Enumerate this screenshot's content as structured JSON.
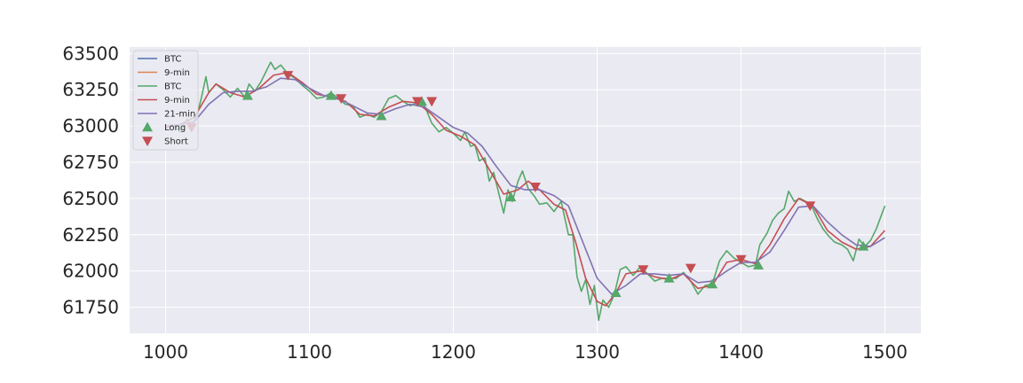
{
  "chart_data": {
    "type": "line",
    "title": "",
    "xlabel": "",
    "ylabel": "",
    "xlim": [
      975,
      1525
    ],
    "ylim": [
      61570,
      63545
    ],
    "xticks": [
      1000,
      1100,
      1200,
      1300,
      1400,
      1500
    ],
    "xtick_labels": [
      "1000",
      "1100",
      "1200",
      "1300",
      "1400",
      "1500"
    ],
    "yticks": [
      61750,
      62000,
      62250,
      62500,
      62750,
      63000,
      63250,
      63500
    ],
    "ytick_labels": [
      "61750",
      "62000",
      "62250",
      "62500",
      "62750",
      "63000",
      "63250",
      "63500"
    ],
    "grid": true,
    "legend_position": "top-left",
    "legend": [
      {
        "label": "BTC",
        "kind": "line",
        "color": "#4c72b0"
      },
      {
        "label": "9-min",
        "kind": "line",
        "color": "#dd8452"
      },
      {
        "label": "BTC",
        "kind": "line",
        "color": "#55a868"
      },
      {
        "label": "9-min",
        "kind": "line",
        "color": "#c44e52"
      },
      {
        "label": "21-min",
        "kind": "line",
        "color": "#8172b3"
      },
      {
        "label": "Long",
        "kind": "marker-up",
        "color": "#55a868"
      },
      {
        "label": "Short",
        "kind": "marker-down",
        "color": "#c44e52"
      }
    ],
    "series": [
      {
        "name": "BTC",
        "color": "#55a868",
        "points": [
          [
            1000,
            62980
          ],
          [
            1005,
            63010
          ],
          [
            1010,
            62960
          ],
          [
            1015,
            63050
          ],
          [
            1018,
            62990
          ],
          [
            1022,
            63080
          ],
          [
            1025,
            63200
          ],
          [
            1028,
            63340
          ],
          [
            1030,
            63230
          ],
          [
            1035,
            63290
          ],
          [
            1040,
            63250
          ],
          [
            1045,
            63200
          ],
          [
            1050,
            63260
          ],
          [
            1055,
            63200
          ],
          [
            1058,
            63290
          ],
          [
            1062,
            63240
          ],
          [
            1066,
            63300
          ],
          [
            1070,
            63380
          ],
          [
            1073,
            63440
          ],
          [
            1076,
            63390
          ],
          [
            1080,
            63420
          ],
          [
            1085,
            63360
          ],
          [
            1090,
            63330
          ],
          [
            1095,
            63280
          ],
          [
            1100,
            63240
          ],
          [
            1105,
            63190
          ],
          [
            1110,
            63200
          ],
          [
            1115,
            63230
          ],
          [
            1120,
            63190
          ],
          [
            1125,
            63150
          ],
          [
            1130,
            63140
          ],
          [
            1135,
            63060
          ],
          [
            1140,
            63080
          ],
          [
            1145,
            63060
          ],
          [
            1150,
            63100
          ],
          [
            1155,
            63190
          ],
          [
            1160,
            63210
          ],
          [
            1165,
            63170
          ],
          [
            1170,
            63140
          ],
          [
            1175,
            63160
          ],
          [
            1180,
            63140
          ],
          [
            1185,
            63020
          ],
          [
            1190,
            62960
          ],
          [
            1195,
            62990
          ],
          [
            1200,
            62950
          ],
          [
            1205,
            62900
          ],
          [
            1208,
            62960
          ],
          [
            1212,
            62860
          ],
          [
            1215,
            62870
          ],
          [
            1218,
            62760
          ],
          [
            1222,
            62780
          ],
          [
            1225,
            62620
          ],
          [
            1228,
            62680
          ],
          [
            1231,
            62560
          ],
          [
            1235,
            62400
          ],
          [
            1238,
            62560
          ],
          [
            1241,
            62480
          ],
          [
            1245,
            62620
          ],
          [
            1248,
            62690
          ],
          [
            1252,
            62570
          ],
          [
            1256,
            62520
          ],
          [
            1260,
            62460
          ],
          [
            1265,
            62470
          ],
          [
            1270,
            62410
          ],
          [
            1275,
            62480
          ],
          [
            1280,
            62250
          ],
          [
            1283,
            62250
          ],
          [
            1286,
            61960
          ],
          [
            1289,
            61860
          ],
          [
            1292,
            61940
          ],
          [
            1295,
            61770
          ],
          [
            1298,
            61900
          ],
          [
            1301,
            61660
          ],
          [
            1304,
            61800
          ],
          [
            1308,
            61750
          ],
          [
            1312,
            61840
          ],
          [
            1316,
            62010
          ],
          [
            1320,
            62030
          ],
          [
            1325,
            61970
          ],
          [
            1330,
            62030
          ],
          [
            1335,
            61980
          ],
          [
            1340,
            61930
          ],
          [
            1345,
            61950
          ],
          [
            1350,
            61950
          ],
          [
            1355,
            61950
          ],
          [
            1360,
            61990
          ],
          [
            1365,
            61930
          ],
          [
            1370,
            61840
          ],
          [
            1375,
            61900
          ],
          [
            1380,
            61910
          ],
          [
            1385,
            62070
          ],
          [
            1390,
            62140
          ],
          [
            1395,
            62090
          ],
          [
            1400,
            62060
          ],
          [
            1405,
            62030
          ],
          [
            1410,
            62040
          ],
          [
            1413,
            62180
          ],
          [
            1418,
            62260
          ],
          [
            1422,
            62350
          ],
          [
            1426,
            62400
          ],
          [
            1430,
            62430
          ],
          [
            1433,
            62550
          ],
          [
            1437,
            62480
          ],
          [
            1441,
            62500
          ],
          [
            1445,
            62480
          ],
          [
            1449,
            62450
          ],
          [
            1453,
            62360
          ],
          [
            1457,
            62290
          ],
          [
            1461,
            62240
          ],
          [
            1465,
            62200
          ],
          [
            1470,
            62180
          ],
          [
            1474,
            62150
          ],
          [
            1478,
            62070
          ],
          [
            1482,
            62220
          ],
          [
            1486,
            62170
          ],
          [
            1490,
            62210
          ],
          [
            1494,
            62290
          ],
          [
            1497,
            62370
          ],
          [
            1500,
            62450
          ]
        ]
      },
      {
        "name": "9-min",
        "color": "#c44e52",
        "points": [
          [
            1000,
            62990
          ],
          [
            1010,
            63010
          ],
          [
            1020,
            63060
          ],
          [
            1030,
            63230
          ],
          [
            1035,
            63290
          ],
          [
            1045,
            63230
          ],
          [
            1055,
            63200
          ],
          [
            1065,
            63260
          ],
          [
            1075,
            63350
          ],
          [
            1085,
            63370
          ],
          [
            1095,
            63300
          ],
          [
            1105,
            63220
          ],
          [
            1115,
            63200
          ],
          [
            1125,
            63170
          ],
          [
            1135,
            63080
          ],
          [
            1145,
            63070
          ],
          [
            1155,
            63130
          ],
          [
            1165,
            63170
          ],
          [
            1175,
            63160
          ],
          [
            1185,
            63080
          ],
          [
            1195,
            62970
          ],
          [
            1205,
            62930
          ],
          [
            1215,
            62870
          ],
          [
            1225,
            62700
          ],
          [
            1235,
            62530
          ],
          [
            1245,
            62560
          ],
          [
            1252,
            62620
          ],
          [
            1260,
            62560
          ],
          [
            1270,
            62460
          ],
          [
            1278,
            62420
          ],
          [
            1285,
            62200
          ],
          [
            1292,
            61950
          ],
          [
            1300,
            61790
          ],
          [
            1306,
            61760
          ],
          [
            1313,
            61850
          ],
          [
            1320,
            61980
          ],
          [
            1330,
            62000
          ],
          [
            1340,
            61960
          ],
          [
            1350,
            61940
          ],
          [
            1360,
            61980
          ],
          [
            1370,
            61880
          ],
          [
            1380,
            61900
          ],
          [
            1390,
            62060
          ],
          [
            1400,
            62080
          ],
          [
            1410,
            62050
          ],
          [
            1420,
            62180
          ],
          [
            1430,
            62360
          ],
          [
            1440,
            62500
          ],
          [
            1450,
            62450
          ],
          [
            1460,
            62280
          ],
          [
            1470,
            62200
          ],
          [
            1480,
            62150
          ],
          [
            1490,
            62170
          ],
          [
            1500,
            62280
          ]
        ]
      },
      {
        "name": "21-min",
        "color": "#8172b3",
        "points": [
          [
            1000,
            63000
          ],
          [
            1010,
            63010
          ],
          [
            1020,
            63030
          ],
          [
            1030,
            63150
          ],
          [
            1040,
            63230
          ],
          [
            1050,
            63240
          ],
          [
            1060,
            63240
          ],
          [
            1070,
            63270
          ],
          [
            1080,
            63330
          ],
          [
            1090,
            63320
          ],
          [
            1100,
            63260
          ],
          [
            1110,
            63210
          ],
          [
            1120,
            63190
          ],
          [
            1130,
            63140
          ],
          [
            1140,
            63090
          ],
          [
            1150,
            63080
          ],
          [
            1160,
            63120
          ],
          [
            1170,
            63150
          ],
          [
            1180,
            63130
          ],
          [
            1190,
            63060
          ],
          [
            1200,
            62990
          ],
          [
            1210,
            62950
          ],
          [
            1220,
            62860
          ],
          [
            1230,
            62720
          ],
          [
            1240,
            62590
          ],
          [
            1250,
            62560
          ],
          [
            1260,
            62560
          ],
          [
            1270,
            62520
          ],
          [
            1280,
            62450
          ],
          [
            1290,
            62200
          ],
          [
            1300,
            61950
          ],
          [
            1310,
            61840
          ],
          [
            1320,
            61900
          ],
          [
            1330,
            61980
          ],
          [
            1340,
            61980
          ],
          [
            1350,
            61970
          ],
          [
            1360,
            61980
          ],
          [
            1370,
            61920
          ],
          [
            1380,
            61930
          ],
          [
            1390,
            62000
          ],
          [
            1400,
            62060
          ],
          [
            1410,
            62060
          ],
          [
            1420,
            62130
          ],
          [
            1430,
            62280
          ],
          [
            1440,
            62440
          ],
          [
            1450,
            62450
          ],
          [
            1460,
            62340
          ],
          [
            1470,
            62250
          ],
          [
            1480,
            62180
          ],
          [
            1490,
            62170
          ],
          [
            1500,
            62230
          ]
        ]
      }
    ],
    "long_signals": [
      [
        1057,
        63210
      ],
      [
        1115,
        63210
      ],
      [
        1150,
        63070
      ],
      [
        1178,
        63170
      ],
      [
        1240,
        62510
      ],
      [
        1313,
        61850
      ],
      [
        1350,
        61950
      ],
      [
        1380,
        61910
      ],
      [
        1412,
        62040
      ],
      [
        1485,
        62170
      ]
    ],
    "short_signals": [
      [
        1018,
        62990
      ],
      [
        1085,
        63350
      ],
      [
        1122,
        63190
      ],
      [
        1175,
        63170
      ],
      [
        1185,
        63170
      ],
      [
        1257,
        62580
      ],
      [
        1332,
        62010
      ],
      [
        1365,
        62020
      ],
      [
        1400,
        62080
      ],
      [
        1448,
        62450
      ]
    ]
  }
}
